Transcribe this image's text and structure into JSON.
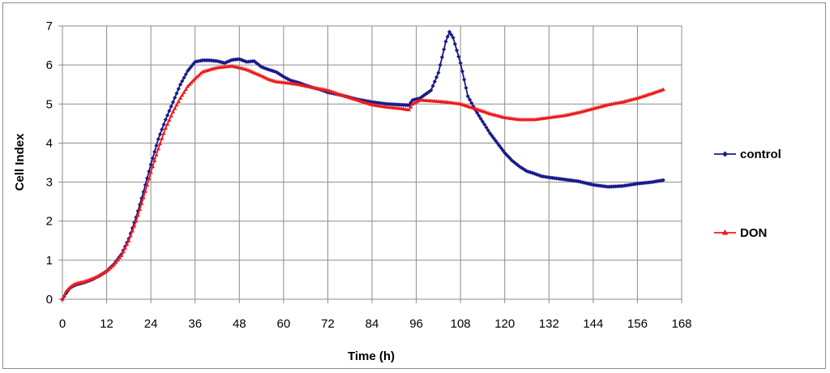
{
  "chart_data": {
    "type": "line",
    "title": "",
    "xlabel": "Time (h)",
    "ylabel": "Cell Index",
    "xlim": [
      0,
      168
    ],
    "ylim": [
      0,
      7
    ],
    "xticks": [
      0,
      12,
      24,
      36,
      48,
      60,
      72,
      84,
      96,
      108,
      120,
      132,
      144,
      156,
      168
    ],
    "yticks": [
      0,
      1,
      2,
      3,
      4,
      5,
      6,
      7
    ],
    "grid": true,
    "legend_position": "right",
    "series": [
      {
        "name": "control",
        "color": "#1a1a8c",
        "marker": "diamond",
        "points": [
          [
            0,
            0
          ],
          [
            1,
            0.15
          ],
          [
            2,
            0.28
          ],
          [
            3,
            0.34
          ],
          [
            4,
            0.38
          ],
          [
            6,
            0.43
          ],
          [
            8,
            0.5
          ],
          [
            10,
            0.6
          ],
          [
            12,
            0.72
          ],
          [
            14,
            0.9
          ],
          [
            16,
            1.15
          ],
          [
            18,
            1.55
          ],
          [
            20,
            2.1
          ],
          [
            22,
            2.75
          ],
          [
            24,
            3.45
          ],
          [
            26,
            4.1
          ],
          [
            28,
            4.6
          ],
          [
            30,
            5.05
          ],
          [
            32,
            5.5
          ],
          [
            34,
            5.85
          ],
          [
            36,
            6.08
          ],
          [
            38,
            6.12
          ],
          [
            40,
            6.12
          ],
          [
            42,
            6.1
          ],
          [
            44,
            6.05
          ],
          [
            46,
            6.13
          ],
          [
            48,
            6.15
          ],
          [
            50,
            6.08
          ],
          [
            52,
            6.1
          ],
          [
            54,
            5.95
          ],
          [
            56,
            5.88
          ],
          [
            58,
            5.82
          ],
          [
            60,
            5.7
          ],
          [
            62,
            5.6
          ],
          [
            64,
            5.55
          ],
          [
            66,
            5.48
          ],
          [
            68,
            5.42
          ],
          [
            70,
            5.37
          ],
          [
            72,
            5.3
          ],
          [
            76,
            5.22
          ],
          [
            80,
            5.12
          ],
          [
            84,
            5.05
          ],
          [
            88,
            5.0
          ],
          [
            92,
            4.98
          ],
          [
            94,
            4.97
          ],
          [
            95,
            5.1
          ],
          [
            97,
            5.15
          ],
          [
            100,
            5.35
          ],
          [
            102,
            5.8
          ],
          [
            104,
            6.6
          ],
          [
            105,
            6.85
          ],
          [
            106,
            6.7
          ],
          [
            108,
            6.05
          ],
          [
            110,
            5.2
          ],
          [
            112,
            4.85
          ],
          [
            114,
            4.55
          ],
          [
            116,
            4.25
          ],
          [
            118,
            4.0
          ],
          [
            120,
            3.75
          ],
          [
            122,
            3.55
          ],
          [
            124,
            3.4
          ],
          [
            126,
            3.28
          ],
          [
            128,
            3.22
          ],
          [
            130,
            3.15
          ],
          [
            132,
            3.12
          ],
          [
            136,
            3.07
          ],
          [
            140,
            3.02
          ],
          [
            144,
            2.93
          ],
          [
            148,
            2.88
          ],
          [
            152,
            2.9
          ],
          [
            156,
            2.96
          ],
          [
            160,
            3.0
          ],
          [
            163,
            3.05
          ]
        ]
      },
      {
        "name": "DON",
        "color": "#ee1c1c",
        "marker": "triangle",
        "points": [
          [
            0,
            0
          ],
          [
            1,
            0.2
          ],
          [
            2,
            0.3
          ],
          [
            3,
            0.37
          ],
          [
            4,
            0.41
          ],
          [
            6,
            0.45
          ],
          [
            8,
            0.52
          ],
          [
            10,
            0.6
          ],
          [
            12,
            0.72
          ],
          [
            14,
            0.88
          ],
          [
            16,
            1.12
          ],
          [
            18,
            1.5
          ],
          [
            20,
            2.0
          ],
          [
            22,
            2.6
          ],
          [
            24,
            3.25
          ],
          [
            26,
            3.85
          ],
          [
            28,
            4.38
          ],
          [
            30,
            4.8
          ],
          [
            32,
            5.15
          ],
          [
            34,
            5.45
          ],
          [
            36,
            5.65
          ],
          [
            38,
            5.82
          ],
          [
            40,
            5.88
          ],
          [
            42,
            5.93
          ],
          [
            44,
            5.95
          ],
          [
            46,
            5.97
          ],
          [
            48,
            5.93
          ],
          [
            50,
            5.88
          ],
          [
            52,
            5.8
          ],
          [
            54,
            5.72
          ],
          [
            56,
            5.63
          ],
          [
            58,
            5.57
          ],
          [
            60,
            5.55
          ],
          [
            64,
            5.5
          ],
          [
            68,
            5.42
          ],
          [
            72,
            5.35
          ],
          [
            76,
            5.22
          ],
          [
            80,
            5.1
          ],
          [
            84,
            4.98
          ],
          [
            88,
            4.92
          ],
          [
            92,
            4.88
          ],
          [
            94,
            4.85
          ],
          [
            95,
            5.0
          ],
          [
            97,
            5.1
          ],
          [
            100,
            5.08
          ],
          [
            104,
            5.05
          ],
          [
            108,
            5.0
          ],
          [
            112,
            4.88
          ],
          [
            116,
            4.75
          ],
          [
            120,
            4.65
          ],
          [
            124,
            4.6
          ],
          [
            128,
            4.6
          ],
          [
            132,
            4.65
          ],
          [
            136,
            4.7
          ],
          [
            140,
            4.78
          ],
          [
            144,
            4.88
          ],
          [
            148,
            4.98
          ],
          [
            152,
            5.05
          ],
          [
            156,
            5.15
          ],
          [
            160,
            5.27
          ],
          [
            163,
            5.37
          ]
        ]
      }
    ]
  }
}
